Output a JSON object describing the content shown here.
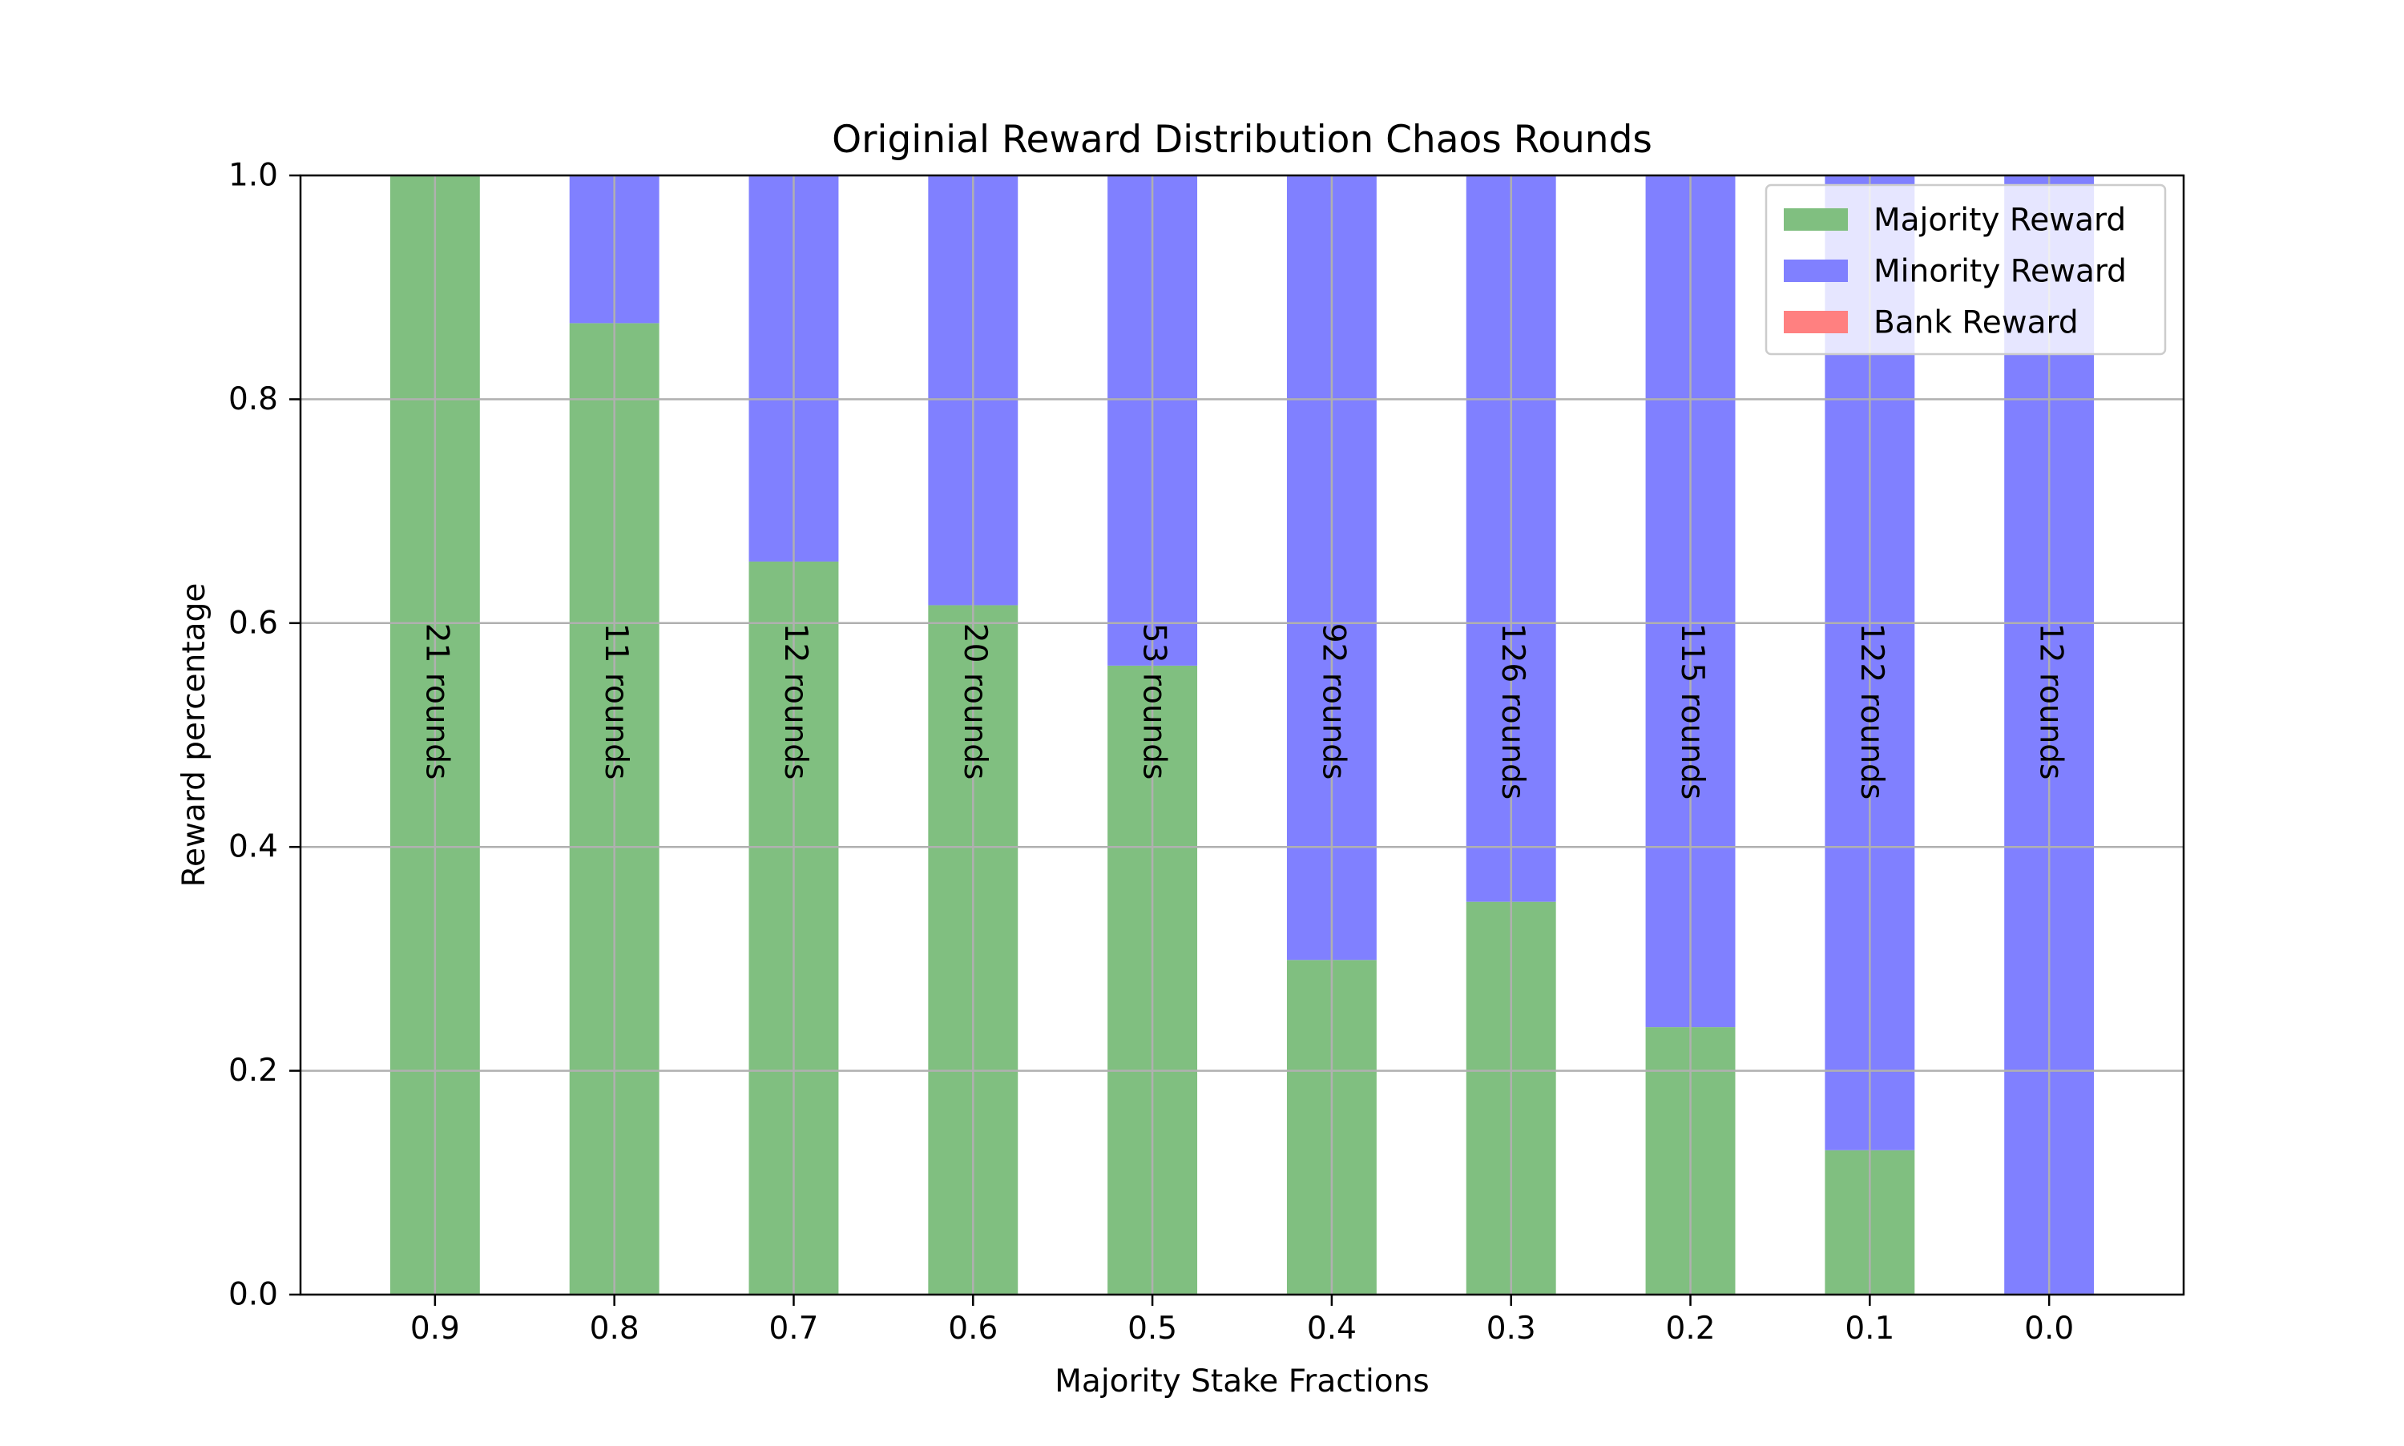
{
  "colors": {
    "majority": "#80bf80",
    "minority": "#8080ff",
    "bank": "#ff8080",
    "grid": "#b0b0b0",
    "axis": "#000000"
  },
  "chart_data": {
    "type": "bar",
    "stacked": true,
    "title": "Originial Reward Distribution Chaos Rounds",
    "xlabel": "Majority Stake Fractions",
    "ylabel": "Reward percentage",
    "categories": [
      "0.9",
      "0.8",
      "0.7",
      "0.6",
      "0.5",
      "0.4",
      "0.3",
      "0.2",
      "0.1",
      "0.0"
    ],
    "ylim": [
      0,
      1.0
    ],
    "yticks": [
      "0.0",
      "0.2",
      "0.4",
      "0.6",
      "0.8",
      "1.0"
    ],
    "grid": true,
    "legend_position": "top-right",
    "series": [
      {
        "name": "Majority Reward",
        "color_key": "majority",
        "values": [
          1.0,
          0.868,
          0.655,
          0.616,
          0.562,
          0.299,
          0.351,
          0.239,
          0.129,
          0.0
        ]
      },
      {
        "name": "Minority Reward",
        "color_key": "minority",
        "values": [
          0.0,
          0.132,
          0.345,
          0.384,
          0.438,
          0.701,
          0.649,
          0.761,
          0.871,
          1.0
        ]
      },
      {
        "name": "Bank Reward",
        "color_key": "bank",
        "values": [
          0,
          0,
          0,
          0,
          0,
          0,
          0,
          0,
          0,
          0
        ]
      }
    ],
    "bar_labels": [
      "21 rounds",
      "11 rounds",
      "12 rounds",
      "20 rounds",
      "53 rounds",
      "92 rounds",
      "126 rounds",
      "115 rounds",
      "122 rounds",
      "12 rounds"
    ]
  }
}
